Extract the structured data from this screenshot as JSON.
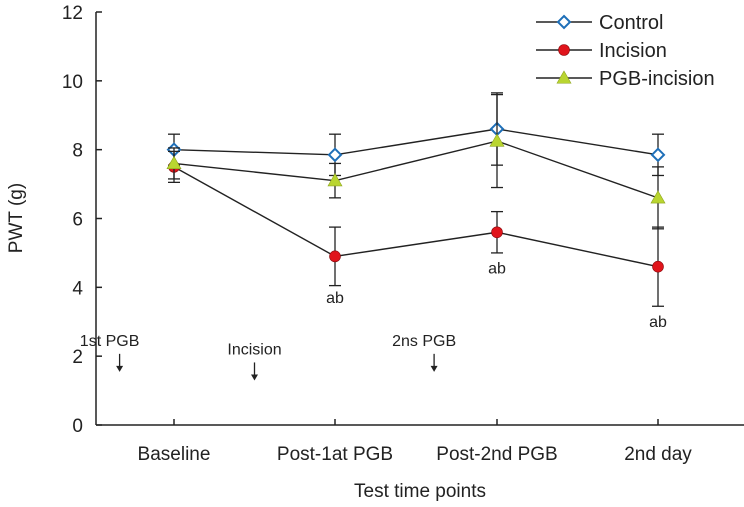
{
  "chart_data": {
    "type": "line",
    "title": "",
    "xlabel": "Test time points",
    "ylabel": "PWT (g)",
    "categories": [
      "Baseline",
      "Post-1at PGB",
      "Post-2nd PGB",
      "2nd day"
    ],
    "ylim": [
      0,
      12
    ],
    "yticks": [
      0,
      2,
      4,
      6,
      8,
      10,
      12
    ],
    "grid": false,
    "legend_position": "top-right",
    "series": [
      {
        "name": "Control",
        "marker": "diamond-open",
        "color": "#1e6fb8",
        "values": [
          8.0,
          7.85,
          8.6,
          7.85
        ],
        "error": [
          0.45,
          0.6,
          1.05,
          0.6
        ]
      },
      {
        "name": "Incision",
        "marker": "circle",
        "color": "#e0141b",
        "values": [
          7.5,
          4.9,
          5.6,
          4.6
        ],
        "error": [
          0.45,
          0.85,
          0.6,
          1.15
        ]
      },
      {
        "name": "PGB-incision",
        "marker": "triangle",
        "color": "#b9d530",
        "values": [
          7.6,
          7.1,
          8.25,
          6.6
        ],
        "error": [
          0.45,
          0.5,
          1.35,
          0.9
        ]
      }
    ],
    "annotations": [
      {
        "text": "1st PGB",
        "category_pos": -0.4,
        "y": 2.3
      },
      {
        "text": "Incision",
        "category_pos": 0.5,
        "y": 2.05
      },
      {
        "text": "2ns PGB",
        "category_pos": 1.55,
        "y": 2.3
      }
    ],
    "significance": [
      {
        "text": "ab",
        "category": 1,
        "y": 3.55
      },
      {
        "text": "ab",
        "category": 2,
        "y": 4.4
      },
      {
        "text": "ab",
        "category": 3,
        "y": 2.85
      }
    ]
  }
}
